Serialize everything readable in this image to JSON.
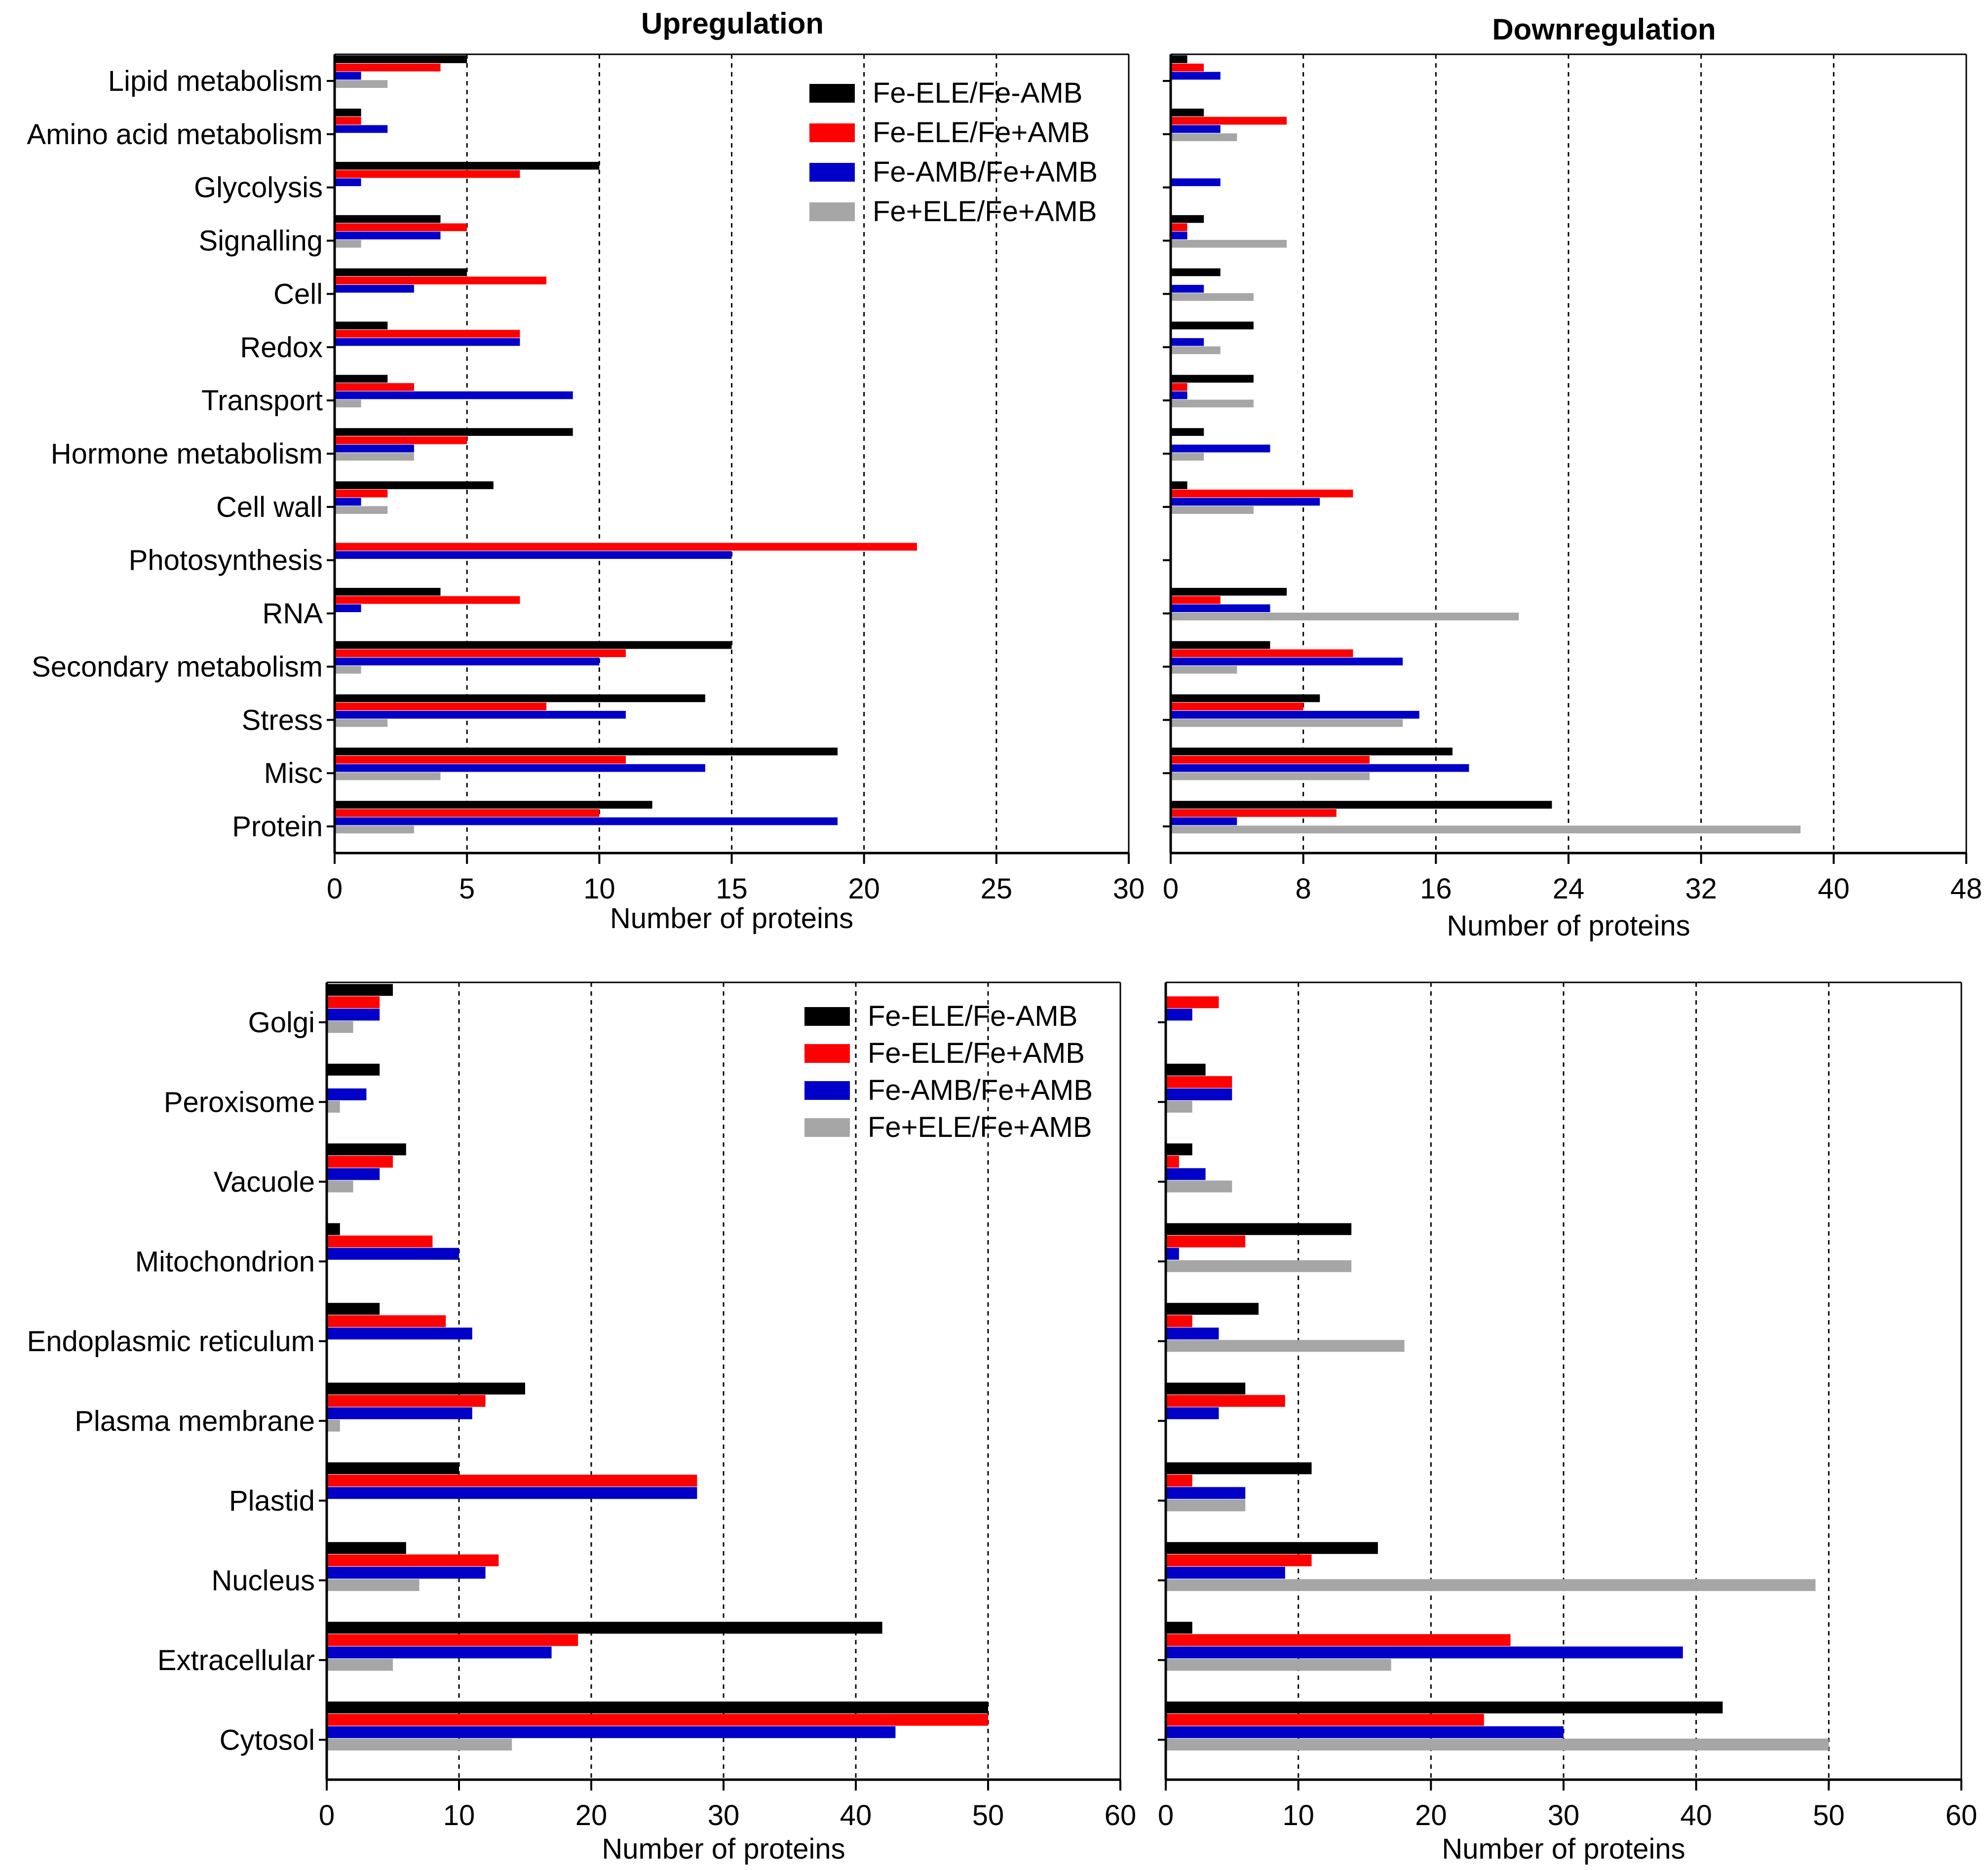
{
  "colors": {
    "series": [
      "#000000",
      "#ff0000",
      "#0000c8",
      "#a6a6a6"
    ]
  },
  "legend": {
    "items": [
      "Fe-ELE/Fe-AMB",
      "Fe-ELE/Fe+AMB",
      "Fe-AMB/Fe+AMB",
      "Fe+ELE/Fe+AMB"
    ]
  },
  "chart_data": [
    {
      "id": "tl",
      "type": "bar",
      "orientation": "horizontal",
      "title": "Upregulation",
      "xlabel": "Number of proteins",
      "ylabel": "",
      "xlim": [
        0,
        30
      ],
      "ticks": [
        0,
        5,
        10,
        15,
        20,
        25,
        30
      ],
      "gridlines": [
        5,
        10,
        15,
        20,
        25
      ],
      "legend_position": "top-right",
      "categories": [
        "Lipid metabolism",
        "Amino acid metabolism",
        "Glycolysis",
        "Signalling",
        "Cell",
        "Redox",
        "Transport",
        "Hormone metabolism",
        "Cell wall",
        "Photosynthesis",
        "RNA",
        "Secondary metabolism",
        "Stress",
        "Misc",
        "Protein"
      ],
      "series": [
        {
          "name": "Fe-ELE/Fe-AMB",
          "values": [
            5,
            1,
            10,
            4,
            5,
            2,
            2,
            9,
            6,
            0,
            4,
            15,
            14,
            19,
            12
          ]
        },
        {
          "name": "Fe-ELE/Fe+AMB",
          "values": [
            4,
            1,
            7,
            5,
            8,
            7,
            3,
            5,
            2,
            22,
            7,
            11,
            8,
            11,
            10
          ]
        },
        {
          "name": "Fe-AMB/Fe+AMB",
          "values": [
            1,
            2,
            1,
            4,
            3,
            7,
            9,
            3,
            1,
            15,
            1,
            10,
            11,
            14,
            19
          ]
        },
        {
          "name": "Fe+ELE/Fe+AMB",
          "values": [
            2,
            0,
            0,
            1,
            0,
            0,
            1,
            3,
            2,
            0,
            0,
            1,
            2,
            4,
            3
          ]
        }
      ]
    },
    {
      "id": "tr",
      "type": "bar",
      "orientation": "horizontal",
      "title": "Downregulation",
      "xlabel": "Number of proteins",
      "ylabel": "",
      "xlim": [
        0,
        48
      ],
      "ticks": [
        0,
        8,
        16,
        24,
        32,
        40,
        48
      ],
      "gridlines": [
        8,
        16,
        24,
        32,
        40
      ],
      "categories": [
        "Lipid metabolism",
        "Amino acid metabolism",
        "Glycolysis",
        "Signalling",
        "Cell",
        "Redox",
        "Transport",
        "Hormone metabolism",
        "Cell wall",
        "Photosynthesis",
        "RNA",
        "Secondary metabolism",
        "Stress",
        "Misc",
        "Protein"
      ],
      "series": [
        {
          "name": "Fe-ELE/Fe-AMB",
          "values": [
            1,
            2,
            0,
            2,
            3,
            5,
            5,
            2,
            1,
            0,
            7,
            6,
            9,
            17,
            23
          ]
        },
        {
          "name": "Fe-ELE/Fe+AMB",
          "values": [
            2,
            7,
            0,
            1,
            0,
            0,
            1,
            0,
            11,
            0,
            3,
            11,
            8,
            12,
            10
          ]
        },
        {
          "name": "Fe-AMB/Fe+AMB",
          "values": [
            3,
            3,
            3,
            1,
            2,
            2,
            1,
            6,
            9,
            0,
            6,
            14,
            15,
            18,
            4
          ]
        },
        {
          "name": "Fe+ELE/Fe+AMB",
          "values": [
            0,
            4,
            0,
            7,
            5,
            3,
            5,
            2,
            5,
            0,
            21,
            4,
            14,
            12,
            38
          ]
        }
      ]
    },
    {
      "id": "bl",
      "type": "bar",
      "orientation": "horizontal",
      "title": "",
      "xlabel": "Number of proteins",
      "ylabel": "",
      "xlim": [
        0,
        60
      ],
      "ticks": [
        0,
        10,
        20,
        30,
        40,
        50,
        60
      ],
      "gridlines": [
        10,
        20,
        30,
        40,
        50
      ],
      "legend_position": "top-right",
      "categories": [
        "Golgi",
        "Peroxisome",
        "Vacuole",
        "Mitochondrion",
        "Endoplasmic reticulum",
        "Plasma membrane",
        "Plastid",
        "Nucleus",
        "Extracellular",
        "Cytosol"
      ],
      "series": [
        {
          "name": "Fe-ELE/Fe-AMB",
          "values": [
            5,
            4,
            6,
            1,
            4,
            15,
            10,
            6,
            42,
            50
          ]
        },
        {
          "name": "Fe-ELE/Fe+AMB",
          "values": [
            4,
            0,
            5,
            8,
            9,
            12,
            28,
            13,
            19,
            50
          ]
        },
        {
          "name": "Fe-AMB/Fe+AMB",
          "values": [
            4,
            3,
            4,
            10,
            11,
            11,
            28,
            12,
            17,
            43
          ]
        },
        {
          "name": "Fe+ELE/Fe+AMB",
          "values": [
            2,
            1,
            2,
            0,
            0,
            1,
            0,
            7,
            5,
            14
          ]
        }
      ]
    },
    {
      "id": "br",
      "type": "bar",
      "orientation": "horizontal",
      "title": "",
      "xlabel": "Number of proteins",
      "ylabel": "",
      "xlim": [
        0,
        60
      ],
      "ticks": [
        0,
        10,
        20,
        30,
        40,
        50,
        60
      ],
      "gridlines": [
        10,
        20,
        30,
        40,
        50
      ],
      "categories": [
        "Golgi",
        "Peroxisome",
        "Vacuole",
        "Mitochondrion",
        "Endoplasmic reticulum",
        "Plasma membrane",
        "Plastid",
        "Nucleus",
        "Extracellular",
        "Cytosol"
      ],
      "series": [
        {
          "name": "Fe-ELE/Fe-AMB",
          "values": [
            0,
            3,
            2,
            14,
            7,
            6,
            11,
            16,
            2,
            42
          ]
        },
        {
          "name": "Fe-ELE/Fe+AMB",
          "values": [
            4,
            5,
            1,
            6,
            2,
            9,
            2,
            11,
            26,
            24
          ]
        },
        {
          "name": "Fe-AMB/Fe+AMB",
          "values": [
            2,
            5,
            3,
            1,
            4,
            4,
            6,
            9,
            39,
            30
          ]
        },
        {
          "name": "Fe+ELE/Fe+AMB",
          "values": [
            0,
            2,
            5,
            14,
            18,
            0,
            6,
            49,
            17,
            50
          ]
        }
      ]
    }
  ]
}
